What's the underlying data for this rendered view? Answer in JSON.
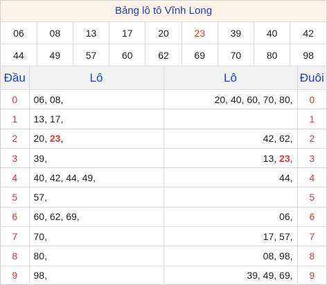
{
  "title": "Bảng lô tô Vĩnh Long",
  "numbers_row1": [
    "06",
    "08",
    "13",
    "17",
    "20",
    "23",
    "39",
    "40",
    "42"
  ],
  "numbers_row2": [
    "44",
    "49",
    "57",
    "60",
    "62",
    "69",
    "70",
    "80",
    "98"
  ],
  "highlight_number": "23",
  "headers": {
    "dau": "Đầu",
    "lo_left": "Lô",
    "lo_right": "Lô",
    "duoi": "Đuôi"
  },
  "rows": [
    {
      "digit": "0",
      "dau_lo": [
        "06",
        "08"
      ],
      "duoi_lo": [
        "20",
        "40",
        "60",
        "70",
        "80"
      ]
    },
    {
      "digit": "1",
      "dau_lo": [
        "13",
        "17"
      ],
      "duoi_lo": []
    },
    {
      "digit": "2",
      "dau_lo": [
        "20",
        "23"
      ],
      "duoi_lo": [
        "42",
        "62"
      ]
    },
    {
      "digit": "3",
      "dau_lo": [
        "39"
      ],
      "duoi_lo": [
        "13",
        "23"
      ]
    },
    {
      "digit": "4",
      "dau_lo": [
        "40",
        "42",
        "44",
        "49"
      ],
      "duoi_lo": [
        "44"
      ]
    },
    {
      "digit": "5",
      "dau_lo": [
        "57"
      ],
      "duoi_lo": []
    },
    {
      "digit": "6",
      "dau_lo": [
        "60",
        "62",
        "69"
      ],
      "duoi_lo": [
        "06"
      ]
    },
    {
      "digit": "7",
      "dau_lo": [
        "70"
      ],
      "duoi_lo": [
        "17",
        "57"
      ]
    },
    {
      "digit": "8",
      "dau_lo": [
        "80"
      ],
      "duoi_lo": [
        "08",
        "98"
      ]
    },
    {
      "digit": "9",
      "dau_lo": [
        "98"
      ],
      "duoi_lo": [
        "39",
        "49",
        "69"
      ]
    }
  ],
  "colors": {
    "title_bg": "#fdf3e8",
    "title_text": "#1c3ed0",
    "highlight": "#e0343b",
    "header_bg": "#f2f2f2"
  }
}
